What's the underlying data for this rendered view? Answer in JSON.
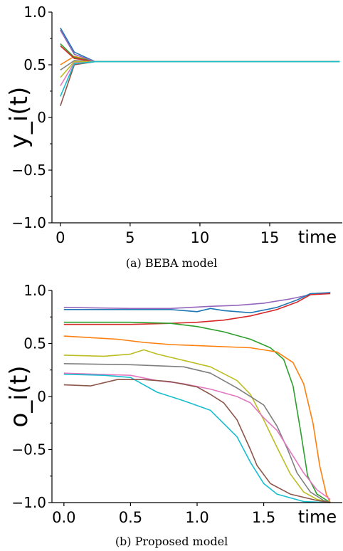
{
  "captions": {
    "a": "(a) BEBA model",
    "b": "(b) Proposed model"
  },
  "chart_data": [
    {
      "type": "line",
      "ylabel": "y_i(t)",
      "xlabel": "time",
      "xlim": [
        -0.6,
        20.2
      ],
      "ylim": [
        -1.0,
        1.0
      ],
      "x_ticks": [
        0,
        5,
        10,
        15
      ],
      "x_tick_labels": [
        "0",
        "5",
        "10",
        "15"
      ],
      "y_ticks": [
        -1.0,
        -0.5,
        0,
        0.5,
        1.0
      ],
      "y_tick_labels": [
        "−1.0",
        "−0.5",
        "0",
        "0.5",
        "1.0"
      ],
      "grid": false,
      "consensus_value": 0.53,
      "series": [
        {
          "color": "#1f77b4",
          "values": [
            [
              0,
              0.85
            ],
            [
              1,
              0.62
            ],
            [
              2.5,
              0.53
            ],
            [
              20,
              0.53
            ]
          ]
        },
        {
          "color": "#ff7f0e",
          "values": [
            [
              0,
              0.5
            ],
            [
              1,
              0.58
            ],
            [
              2.5,
              0.53
            ],
            [
              20,
              0.53
            ]
          ]
        },
        {
          "color": "#2ca02c",
          "values": [
            [
              0,
              0.7
            ],
            [
              1,
              0.57
            ],
            [
              2.5,
              0.53
            ],
            [
              20,
              0.53
            ]
          ]
        },
        {
          "color": "#d62728",
          "values": [
            [
              0,
              0.68
            ],
            [
              1,
              0.56
            ],
            [
              2.5,
              0.53
            ],
            [
              20,
              0.53
            ]
          ]
        },
        {
          "color": "#9467bd",
          "values": [
            [
              0,
              0.83
            ],
            [
              1,
              0.6
            ],
            [
              2.5,
              0.53
            ],
            [
              20,
              0.53
            ]
          ]
        },
        {
          "color": "#8c564b",
          "values": [
            [
              0,
              0.11
            ],
            [
              1,
              0.5
            ],
            [
              2.5,
              0.53
            ],
            [
              20,
              0.53
            ]
          ]
        },
        {
          "color": "#e377c2",
          "values": [
            [
              0,
              0.3
            ],
            [
              1,
              0.52
            ],
            [
              2.5,
              0.53
            ],
            [
              20,
              0.53
            ]
          ]
        },
        {
          "color": "#7f7f7f",
          "values": [
            [
              0,
              0.45
            ],
            [
              1,
              0.54
            ],
            [
              2.5,
              0.53
            ],
            [
              20,
              0.53
            ]
          ]
        },
        {
          "color": "#bcbd22",
          "values": [
            [
              0,
              0.38
            ],
            [
              1,
              0.53
            ],
            [
              2.5,
              0.53
            ],
            [
              20,
              0.53
            ]
          ]
        },
        {
          "color": "#17becf",
          "values": [
            [
              0,
              0.2
            ],
            [
              1,
              0.51
            ],
            [
              2.5,
              0.53
            ],
            [
              20,
              0.53
            ]
          ]
        }
      ]
    },
    {
      "type": "line",
      "ylabel": "o_i(t)",
      "xlabel": "time",
      "xlim": [
        -0.09,
        2.09
      ],
      "ylim": [
        -1.0,
        1.0
      ],
      "x_ticks": [
        0.0,
        0.5,
        1.0,
        1.5
      ],
      "x_tick_labels": [
        "0.0",
        "0.5",
        "1.0",
        "1.5"
      ],
      "y_ticks": [
        -1.0,
        -0.5,
        0,
        0.5,
        1.0
      ],
      "y_tick_labels": [
        "−1.0",
        "−0.5",
        "0",
        "0.5",
        "1.0"
      ],
      "grid": false,
      "series": [
        {
          "color": "#9467bd",
          "values": [
            [
              0,
              0.84
            ],
            [
              0.5,
              0.83
            ],
            [
              0.8,
              0.83
            ],
            [
              1.1,
              0.85
            ],
            [
              1.3,
              0.86
            ],
            [
              1.5,
              0.88
            ],
            [
              1.7,
              0.92
            ],
            [
              1.85,
              0.96
            ],
            [
              2.0,
              0.98
            ]
          ]
        },
        {
          "color": "#1f77b4",
          "values": [
            [
              0,
              0.82
            ],
            [
              0.5,
              0.82
            ],
            [
              0.8,
              0.82
            ],
            [
              1.0,
              0.8
            ],
            [
              1.1,
              0.83
            ],
            [
              1.2,
              0.81
            ],
            [
              1.4,
              0.79
            ],
            [
              1.6,
              0.84
            ],
            [
              1.75,
              0.91
            ],
            [
              1.85,
              0.97
            ],
            [
              2.0,
              0.98
            ]
          ]
        },
        {
          "color": "#d62728",
          "values": [
            [
              0,
              0.68
            ],
            [
              0.5,
              0.68
            ],
            [
              0.8,
              0.69
            ],
            [
              1.0,
              0.7
            ],
            [
              1.2,
              0.72
            ],
            [
              1.4,
              0.76
            ],
            [
              1.6,
              0.82
            ],
            [
              1.75,
              0.89
            ],
            [
              1.85,
              0.96
            ],
            [
              2.0,
              0.97
            ]
          ]
        },
        {
          "color": "#2ca02c",
          "values": [
            [
              0,
              0.7
            ],
            [
              0.5,
              0.7
            ],
            [
              0.8,
              0.69
            ],
            [
              1.0,
              0.66
            ],
            [
              1.2,
              0.61
            ],
            [
              1.4,
              0.54
            ],
            [
              1.55,
              0.46
            ],
            [
              1.65,
              0.35
            ],
            [
              1.72,
              0.1
            ],
            [
              1.78,
              -0.35
            ],
            [
              1.83,
              -0.75
            ],
            [
              1.9,
              -0.92
            ],
            [
              2.0,
              -1.0
            ]
          ]
        },
        {
          "color": "#ff7f0e",
          "values": [
            [
              0,
              0.57
            ],
            [
              0.4,
              0.54
            ],
            [
              0.6,
              0.51
            ],
            [
              0.8,
              0.49
            ],
            [
              1.2,
              0.47
            ],
            [
              1.4,
              0.46
            ],
            [
              1.6,
              0.42
            ],
            [
              1.72,
              0.32
            ],
            [
              1.8,
              0.12
            ],
            [
              1.87,
              -0.25
            ],
            [
              1.92,
              -0.65
            ],
            [
              1.97,
              -0.92
            ],
            [
              2.0,
              -1.0
            ]
          ]
        },
        {
          "color": "#bcbd22",
          "values": [
            [
              0,
              0.39
            ],
            [
              0.3,
              0.38
            ],
            [
              0.5,
              0.4
            ],
            [
              0.6,
              0.44
            ],
            [
              0.7,
              0.4
            ],
            [
              0.9,
              0.34
            ],
            [
              1.1,
              0.28
            ],
            [
              1.3,
              0.15
            ],
            [
              1.4,
              0.02
            ],
            [
              1.5,
              -0.22
            ],
            [
              1.6,
              -0.48
            ],
            [
              1.7,
              -0.73
            ],
            [
              1.8,
              -0.9
            ],
            [
              1.9,
              -0.97
            ],
            [
              2.0,
              -1.0
            ]
          ]
        },
        {
          "color": "#7f7f7f",
          "values": [
            [
              0,
              0.31
            ],
            [
              0.5,
              0.3
            ],
            [
              0.7,
              0.29
            ],
            [
              0.9,
              0.28
            ],
            [
              1.1,
              0.22
            ],
            [
              1.3,
              0.08
            ],
            [
              1.5,
              -0.08
            ],
            [
              1.6,
              -0.28
            ],
            [
              1.68,
              -0.5
            ],
            [
              1.75,
              -0.72
            ],
            [
              1.85,
              -0.9
            ],
            [
              1.95,
              -0.98
            ],
            [
              2.0,
              -1.0
            ]
          ]
        },
        {
          "color": "#e377c2",
          "values": [
            [
              0,
              0.22
            ],
            [
              0.5,
              0.2
            ],
            [
              0.7,
              0.15
            ],
            [
              0.9,
              0.12
            ],
            [
              1.1,
              0.07
            ],
            [
              1.3,
              0.0
            ],
            [
              1.4,
              -0.06
            ],
            [
              1.5,
              -0.2
            ],
            [
              1.6,
              -0.32
            ],
            [
              1.7,
              -0.52
            ],
            [
              1.8,
              -0.72
            ],
            [
              1.9,
              -0.88
            ],
            [
              2.0,
              -0.97
            ]
          ]
        },
        {
          "color": "#17becf",
          "values": [
            [
              0,
              0.21
            ],
            [
              0.3,
              0.2
            ],
            [
              0.5,
              0.18
            ],
            [
              0.7,
              0.04
            ],
            [
              0.9,
              -0.04
            ],
            [
              1.1,
              -0.13
            ],
            [
              1.3,
              -0.38
            ],
            [
              1.4,
              -0.62
            ],
            [
              1.5,
              -0.82
            ],
            [
              1.6,
              -0.92
            ],
            [
              1.8,
              -0.99
            ],
            [
              2.0,
              -1.0
            ]
          ]
        },
        {
          "color": "#8c564b",
          "values": [
            [
              0,
              0.11
            ],
            [
              0.2,
              0.1
            ],
            [
              0.4,
              0.16
            ],
            [
              0.6,
              0.16
            ],
            [
              0.8,
              0.14
            ],
            [
              1.0,
              0.09
            ],
            [
              1.1,
              0.02
            ],
            [
              1.2,
              -0.06
            ],
            [
              1.3,
              -0.22
            ],
            [
              1.4,
              -0.5
            ],
            [
              1.45,
              -0.65
            ],
            [
              1.55,
              -0.82
            ],
            [
              1.7,
              -0.92
            ],
            [
              1.9,
              -0.98
            ],
            [
              2.0,
              -1.0
            ]
          ]
        }
      ]
    }
  ]
}
